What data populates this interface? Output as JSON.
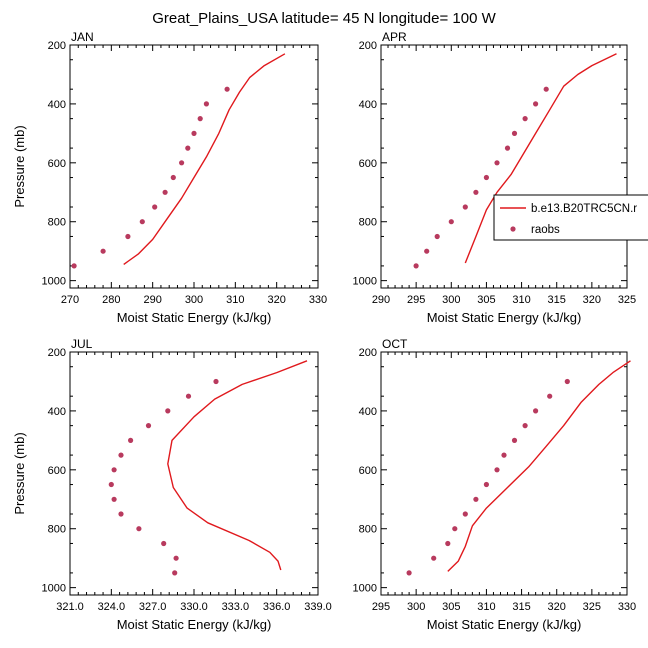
{
  "figure": {
    "title": "Great_Plains_USA  latitude= 45 N longitude= 100 W"
  },
  "legend": {
    "entries": [
      {
        "name": "b.e13.B20TRC5CN.r",
        "color": "#e0191d",
        "kind": "line"
      },
      {
        "name": "raobs",
        "color": "#b83a5e",
        "kind": "marker"
      }
    ]
  },
  "chart_data": [
    {
      "type": "line",
      "panel_label": "JAN",
      "xlabel": "Moist Static Energy (kJ/kg)",
      "ylabel": "Pressure (mb)",
      "xlim": [
        270,
        330
      ],
      "ylim": [
        1025,
        200
      ],
      "x_ticks": [
        270,
        280,
        290,
        300,
        310,
        320,
        330
      ],
      "x_tick_labels": [
        "270",
        "280",
        "290",
        "300",
        "310",
        "320",
        "330"
      ],
      "y_ticks": [
        200,
        400,
        600,
        800,
        1000
      ],
      "y_tick_labels": [
        "200",
        "400",
        "600",
        "800",
        "1000"
      ],
      "series": [
        {
          "name": "b.e13.B20TRC5CN.r",
          "style": "line",
          "color": "#e0191d",
          "points": [
            [
              283.0,
              945
            ],
            [
              286.5,
              910
            ],
            [
              290,
              860
            ],
            [
              293.5,
              790
            ],
            [
              297,
              720
            ],
            [
              300,
              650
            ],
            [
              303,
              580
            ],
            [
              306,
              500
            ],
            [
              308.5,
              420
            ],
            [
              311,
              360
            ],
            [
              313.5,
              310
            ],
            [
              317,
              270
            ],
            [
              322,
              230
            ]
          ]
        },
        {
          "name": "raobs",
          "style": "marker",
          "color": "#b83a5e",
          "points": [
            [
              271,
              950
            ],
            [
              278,
              900
            ],
            [
              284,
              850
            ],
            [
              287.5,
              800
            ],
            [
              290.5,
              750
            ],
            [
              293,
              700
            ],
            [
              295,
              650
            ],
            [
              297,
              600
            ],
            [
              298.5,
              550
            ],
            [
              300,
              500
            ],
            [
              301.5,
              450
            ],
            [
              303,
              400
            ],
            [
              308,
              350
            ]
          ]
        }
      ]
    },
    {
      "type": "line",
      "panel_label": "APR",
      "xlabel": "Moist Static Energy (kJ/kg)",
      "ylabel": "",
      "xlim": [
        290,
        325
      ],
      "ylim": [
        1025,
        200
      ],
      "x_ticks": [
        290,
        295,
        300,
        305,
        310,
        315,
        320,
        325
      ],
      "x_tick_labels": [
        "290",
        "295",
        "300",
        "305",
        "310",
        "315",
        "320",
        "325"
      ],
      "y_ticks": [
        200,
        400,
        600,
        800,
        1000
      ],
      "y_tick_labels": [
        "200",
        "400",
        "600",
        "800",
        "1000"
      ],
      "series": [
        {
          "name": "b.e13.B20TRC5CN.r",
          "style": "line",
          "color": "#e0191d",
          "points": [
            [
              302,
              940
            ],
            [
              303.5,
              850
            ],
            [
              305,
              760
            ],
            [
              306.5,
              700
            ],
            [
              308.5,
              640
            ],
            [
              310,
              580
            ],
            [
              312,
              500
            ],
            [
              314,
              420
            ],
            [
              316,
              340
            ],
            [
              318,
              300
            ],
            [
              320,
              270
            ],
            [
              323.5,
              230
            ]
          ]
        },
        {
          "name": "raobs",
          "style": "marker",
          "color": "#b83a5e",
          "points": [
            [
              295,
              950
            ],
            [
              296.5,
              900
            ],
            [
              298,
              850
            ],
            [
              300,
              800
            ],
            [
              302,
              750
            ],
            [
              303.5,
              700
            ],
            [
              305,
              650
            ],
            [
              306.5,
              600
            ],
            [
              308,
              550
            ],
            [
              309,
              500
            ],
            [
              310.5,
              450
            ],
            [
              312,
              400
            ],
            [
              313.5,
              350
            ]
          ]
        }
      ]
    },
    {
      "type": "line",
      "panel_label": "JUL",
      "xlabel": "Moist Static Energy (kJ/kg)",
      "ylabel": "Pressure (mb)",
      "xlim": [
        321,
        339
      ],
      "ylim": [
        1025,
        200
      ],
      "x_ticks": [
        321,
        324,
        327,
        330,
        333,
        336,
        339
      ],
      "x_tick_labels": [
        "321.0",
        "324.0",
        "327.0",
        "330.0",
        "333.0",
        "336.0",
        "339.0"
      ],
      "y_ticks": [
        200,
        400,
        600,
        800,
        1000
      ],
      "y_tick_labels": [
        "200",
        "400",
        "600",
        "800",
        "1000"
      ],
      "series": [
        {
          "name": "b.e13.B20TRC5CN.r",
          "style": "line",
          "color": "#e0191d",
          "points": [
            [
              336.3,
              940
            ],
            [
              336.1,
              910
            ],
            [
              335.5,
              880
            ],
            [
              334,
              840
            ],
            [
              331,
              780
            ],
            [
              329.5,
              730
            ],
            [
              328.5,
              660
            ],
            [
              328.1,
              580
            ],
            [
              328.4,
              500
            ],
            [
              330,
              420
            ],
            [
              331.5,
              360
            ],
            [
              333.5,
              310
            ],
            [
              336,
              270
            ],
            [
              338.2,
              230
            ]
          ]
        },
        {
          "name": "raobs",
          "style": "marker",
          "color": "#b83a5e",
          "points": [
            [
              328.6,
              950
            ],
            [
              328.7,
              900
            ],
            [
              327.8,
              850
            ],
            [
              326,
              800
            ],
            [
              324.7,
              750
            ],
            [
              324.2,
              700
            ],
            [
              324.0,
              650
            ],
            [
              324.2,
              600
            ],
            [
              324.7,
              550
            ],
            [
              325.4,
              500
            ],
            [
              326.7,
              450
            ],
            [
              328.1,
              400
            ],
            [
              329.6,
              350
            ],
            [
              331.6,
              300
            ]
          ]
        }
      ]
    },
    {
      "type": "line",
      "panel_label": "OCT",
      "xlabel": "Moist Static Energy (kJ/kg)",
      "ylabel": "",
      "xlim": [
        295,
        330
      ],
      "ylim": [
        1025,
        200
      ],
      "x_ticks": [
        295,
        300,
        305,
        310,
        315,
        320,
        325,
        330
      ],
      "x_tick_labels": [
        "295",
        "300",
        "305",
        "310",
        "315",
        "320",
        "325",
        "330"
      ],
      "y_ticks": [
        200,
        400,
        600,
        800,
        1000
      ],
      "y_tick_labels": [
        "200",
        "400",
        "600",
        "800",
        "1000"
      ],
      "series": [
        {
          "name": "b.e13.B20TRC5CN.r",
          "style": "line",
          "color": "#e0191d",
          "points": [
            [
              304.5,
              945
            ],
            [
              306,
              910
            ],
            [
              307,
              860
            ],
            [
              308,
              790
            ],
            [
              310,
              730
            ],
            [
              313,
              660
            ],
            [
              316,
              590
            ],
            [
              318.5,
              520
            ],
            [
              321,
              450
            ],
            [
              323.5,
              370
            ],
            [
              326,
              310
            ],
            [
              328,
              270
            ],
            [
              330.5,
              230
            ]
          ]
        },
        {
          "name": "raobs",
          "style": "marker",
          "color": "#b83a5e",
          "points": [
            [
              299,
              950
            ],
            [
              302.5,
              900
            ],
            [
              304.5,
              850
            ],
            [
              305.5,
              800
            ],
            [
              307,
              750
            ],
            [
              308.5,
              700
            ],
            [
              310,
              650
            ],
            [
              311.5,
              600
            ],
            [
              312.5,
              550
            ],
            [
              314,
              500
            ],
            [
              315.5,
              450
            ],
            [
              317,
              400
            ],
            [
              319,
              350
            ],
            [
              321.5,
              300
            ]
          ]
        }
      ]
    }
  ]
}
